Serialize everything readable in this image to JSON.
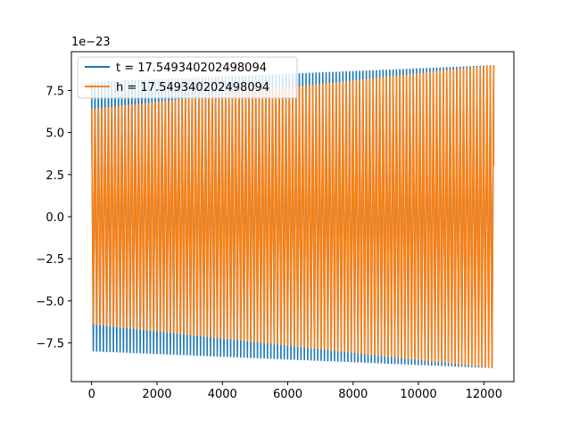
{
  "chart_data": {
    "type": "line",
    "title": "",
    "xlabel": "",
    "ylabel": "",
    "xlim": [
      -620,
      12920
    ],
    "ylim": [
      -9.8,
      9.8
    ],
    "y_offset_label": "1e−23",
    "x_ticks": [
      0,
      2000,
      4000,
      6000,
      8000,
      10000,
      12000
    ],
    "x_tick_labels": [
      "0",
      "2000",
      "4000",
      "6000",
      "8000",
      "10000",
      "12000"
    ],
    "y_ticks": [
      -7.5,
      -5.0,
      -2.5,
      0.0,
      2.5,
      5.0,
      7.5
    ],
    "y_tick_labels": [
      "−7.5",
      "−5.0",
      "−2.5",
      "0.0",
      "2.5",
      "5.0",
      "7.5"
    ],
    "grid": false,
    "legend_placement": "upper-left",
    "series": [
      {
        "name": "t = 17.549340202498094",
        "color": "#1f77b4",
        "kind": "chirp",
        "x_range": [
          0,
          12300
        ],
        "amplitude_start": 8.0,
        "amplitude_end": 9.0,
        "oscillation_peaks": 120
      },
      {
        "name": "h = 17.549340202498094",
        "color": "#ff7f0e",
        "kind": "chirp",
        "x_range": [
          0,
          12300
        ],
        "amplitude_start": 6.4,
        "amplitude_end": 9.0,
        "oscillation_peaks": 120
      }
    ]
  }
}
